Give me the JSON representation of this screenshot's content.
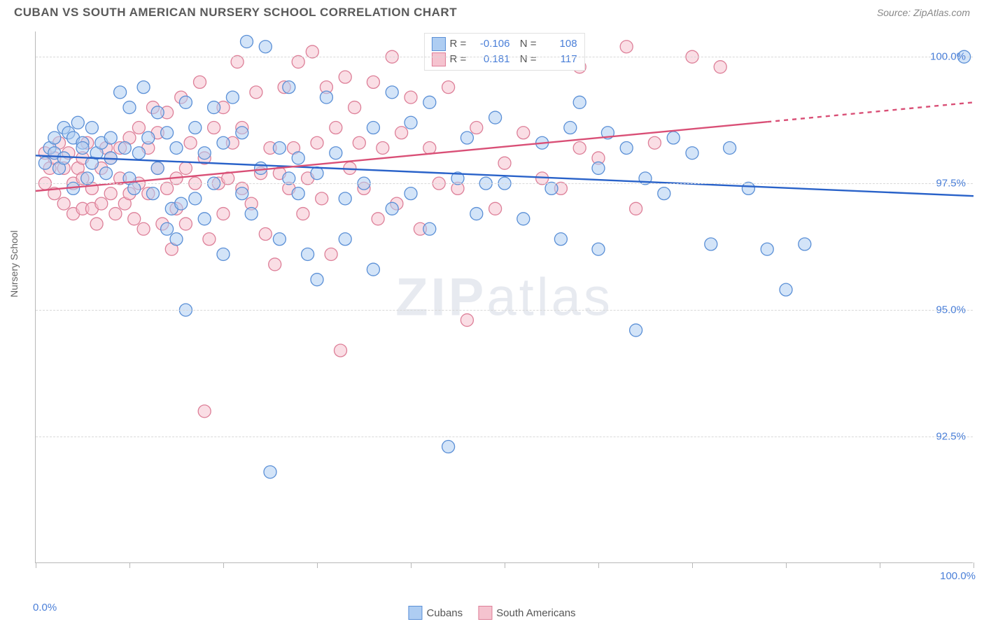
{
  "header": {
    "title": "CUBAN VS SOUTH AMERICAN NURSERY SCHOOL CORRELATION CHART",
    "source": "Source: ZipAtlas.com"
  },
  "chart": {
    "type": "scatter",
    "ylabel": "Nursery School",
    "watermark": "ZIPatlas",
    "background_color": "#ffffff",
    "grid_color": "#d8d8d8",
    "axis_color": "#b8b8b8",
    "tick_label_color": "#4a7fd8",
    "xlim": [
      0,
      100
    ],
    "ylim": [
      90.0,
      100.5
    ],
    "y_ticks": [
      92.5,
      95.0,
      97.5,
      100.0
    ],
    "y_tick_labels": [
      "92.5%",
      "95.0%",
      "97.5%",
      "100.0%"
    ],
    "x_ticks": [
      0,
      10,
      20,
      30,
      40,
      50,
      60,
      70,
      80,
      90,
      100
    ],
    "x_edge_labels": {
      "min": "0.0%",
      "max": "100.0%"
    },
    "marker_radius": 9,
    "marker_opacity": 0.55,
    "line_width": 2.4,
    "series": [
      {
        "key": "cubans",
        "label": "Cubans",
        "fill_color": "#aecdf2",
        "stroke_color": "#5a8fd6",
        "line_color": "#2962c9",
        "R": "-0.106",
        "N": "108",
        "trend": {
          "x1": 0,
          "y1": 98.05,
          "x2": 100,
          "y2": 97.25,
          "dash_after_x": null
        },
        "points": [
          [
            1,
            97.9
          ],
          [
            1.5,
            98.2
          ],
          [
            2,
            98.1
          ],
          [
            2,
            98.4
          ],
          [
            2.5,
            97.8
          ],
          [
            3,
            98.0
          ],
          [
            3,
            98.6
          ],
          [
            3.5,
            98.5
          ],
          [
            4,
            98.4
          ],
          [
            4,
            97.4
          ],
          [
            4.5,
            98.7
          ],
          [
            5,
            98.3
          ],
          [
            5,
            98.2
          ],
          [
            5.5,
            97.6
          ],
          [
            6,
            98.6
          ],
          [
            6,
            97.9
          ],
          [
            6.5,
            98.1
          ],
          [
            7,
            98.3
          ],
          [
            7.5,
            97.7
          ],
          [
            8,
            98.4
          ],
          [
            8,
            98.0
          ],
          [
            9,
            99.3
          ],
          [
            9.5,
            98.2
          ],
          [
            10,
            97.6
          ],
          [
            10,
            99.0
          ],
          [
            10.5,
            97.4
          ],
          [
            11,
            98.1
          ],
          [
            11.5,
            99.4
          ],
          [
            12,
            98.4
          ],
          [
            12.5,
            97.3
          ],
          [
            13,
            98.9
          ],
          [
            13,
            97.8
          ],
          [
            14,
            98.5
          ],
          [
            14,
            96.6
          ],
          [
            14.5,
            97.0
          ],
          [
            15,
            98.2
          ],
          [
            15,
            96.4
          ],
          [
            15.5,
            97.1
          ],
          [
            16,
            99.1
          ],
          [
            16,
            95.0
          ],
          [
            17,
            98.6
          ],
          [
            17,
            97.2
          ],
          [
            18,
            96.8
          ],
          [
            18,
            98.1
          ],
          [
            19,
            97.5
          ],
          [
            19,
            99.0
          ],
          [
            20,
            98.3
          ],
          [
            20,
            96.1
          ],
          [
            21,
            99.2
          ],
          [
            22,
            97.3
          ],
          [
            22,
            98.5
          ],
          [
            22.5,
            100.3
          ],
          [
            23,
            96.9
          ],
          [
            24,
            97.8
          ],
          [
            24.5,
            100.2
          ],
          [
            25,
            91.8
          ],
          [
            26,
            98.2
          ],
          [
            26,
            96.4
          ],
          [
            27,
            97.6
          ],
          [
            27,
            99.4
          ],
          [
            28,
            97.3
          ],
          [
            28,
            98.0
          ],
          [
            29,
            96.1
          ],
          [
            30,
            97.7
          ],
          [
            30,
            95.6
          ],
          [
            31,
            99.2
          ],
          [
            32,
            98.1
          ],
          [
            33,
            97.2
          ],
          [
            33,
            96.4
          ],
          [
            35,
            97.5
          ],
          [
            36,
            98.6
          ],
          [
            36,
            95.8
          ],
          [
            38,
            97.0
          ],
          [
            38,
            99.3
          ],
          [
            40,
            97.3
          ],
          [
            40,
            98.7
          ],
          [
            42,
            96.6
          ],
          [
            42,
            99.1
          ],
          [
            44,
            92.3
          ],
          [
            45,
            97.6
          ],
          [
            46,
            98.4
          ],
          [
            47,
            96.9
          ],
          [
            48,
            97.5
          ],
          [
            49,
            98.8
          ],
          [
            50,
            97.5
          ],
          [
            52,
            96.8
          ],
          [
            54,
            98.3
          ],
          [
            55,
            97.4
          ],
          [
            56,
            96.4
          ],
          [
            57,
            98.6
          ],
          [
            58,
            99.1
          ],
          [
            60,
            97.8
          ],
          [
            60,
            96.2
          ],
          [
            61,
            98.5
          ],
          [
            63,
            98.2
          ],
          [
            64,
            94.6
          ],
          [
            65,
            97.6
          ],
          [
            67,
            97.3
          ],
          [
            68,
            98.4
          ],
          [
            70,
            98.1
          ],
          [
            72,
            96.3
          ],
          [
            74,
            98.2
          ],
          [
            76,
            97.4
          ],
          [
            78,
            96.2
          ],
          [
            80,
            95.4
          ],
          [
            82,
            96.3
          ],
          [
            99,
            100.0
          ]
        ]
      },
      {
        "key": "south_americans",
        "label": "South Americans",
        "fill_color": "#f5c3cf",
        "stroke_color": "#dd7f98",
        "line_color": "#d94f76",
        "R": "0.181",
        "N": "117",
        "trend": {
          "x1": 0,
          "y1": 97.35,
          "x2": 100,
          "y2": 99.1,
          "dash_after_x": 78
        },
        "points": [
          [
            1,
            98.1
          ],
          [
            1,
            97.5
          ],
          [
            1.5,
            97.8
          ],
          [
            2,
            97.3
          ],
          [
            2,
            98.0
          ],
          [
            2.5,
            98.3
          ],
          [
            3,
            97.8
          ],
          [
            3,
            97.1
          ],
          [
            3.5,
            98.1
          ],
          [
            4,
            97.5
          ],
          [
            4,
            96.9
          ],
          [
            4.5,
            97.8
          ],
          [
            5,
            98.0
          ],
          [
            5,
            97.6
          ],
          [
            5,
            97.0
          ],
          [
            5.5,
            98.3
          ],
          [
            6,
            97.4
          ],
          [
            6,
            97.0
          ],
          [
            6.5,
            96.7
          ],
          [
            7,
            97.8
          ],
          [
            7,
            97.1
          ],
          [
            7.5,
            98.2
          ],
          [
            8,
            98.0
          ],
          [
            8,
            97.3
          ],
          [
            8.5,
            96.9
          ],
          [
            9,
            98.2
          ],
          [
            9,
            97.6
          ],
          [
            9.5,
            97.1
          ],
          [
            10,
            98.4
          ],
          [
            10,
            97.3
          ],
          [
            10.5,
            96.8
          ],
          [
            11,
            98.6
          ],
          [
            11,
            97.5
          ],
          [
            11.5,
            96.6
          ],
          [
            12,
            98.2
          ],
          [
            12,
            97.3
          ],
          [
            12.5,
            99.0
          ],
          [
            13,
            97.8
          ],
          [
            13,
            98.5
          ],
          [
            13.5,
            96.7
          ],
          [
            14,
            97.4
          ],
          [
            14,
            98.9
          ],
          [
            14.5,
            96.2
          ],
          [
            15,
            97.6
          ],
          [
            15,
            97.0
          ],
          [
            15.5,
            99.2
          ],
          [
            16,
            97.8
          ],
          [
            16,
            96.7
          ],
          [
            16.5,
            98.3
          ],
          [
            17,
            97.5
          ],
          [
            17.5,
            99.5
          ],
          [
            18,
            98.0
          ],
          [
            18,
            93.0
          ],
          [
            18.5,
            96.4
          ],
          [
            19,
            98.6
          ],
          [
            19.5,
            97.5
          ],
          [
            20,
            99.0
          ],
          [
            20,
            96.9
          ],
          [
            20.5,
            97.6
          ],
          [
            21,
            98.3
          ],
          [
            21.5,
            99.9
          ],
          [
            22,
            97.4
          ],
          [
            22,
            98.6
          ],
          [
            23,
            97.1
          ],
          [
            23.5,
            99.3
          ],
          [
            24,
            97.7
          ],
          [
            24.5,
            96.5
          ],
          [
            25,
            98.2
          ],
          [
            25.5,
            95.9
          ],
          [
            26,
            97.7
          ],
          [
            26.5,
            99.4
          ],
          [
            27,
            97.4
          ],
          [
            27.5,
            98.2
          ],
          [
            28,
            99.9
          ],
          [
            28.5,
            96.9
          ],
          [
            29,
            97.6
          ],
          [
            29.5,
            100.1
          ],
          [
            30,
            98.3
          ],
          [
            30.5,
            97.2
          ],
          [
            31,
            99.4
          ],
          [
            31.5,
            96.1
          ],
          [
            32,
            98.6
          ],
          [
            32.5,
            94.2
          ],
          [
            33,
            99.6
          ],
          [
            33.5,
            97.8
          ],
          [
            34,
            99.0
          ],
          [
            34.5,
            98.3
          ],
          [
            35,
            97.4
          ],
          [
            36,
            99.5
          ],
          [
            36.5,
            96.8
          ],
          [
            37,
            98.2
          ],
          [
            38,
            100.0
          ],
          [
            38.5,
            97.1
          ],
          [
            39,
            98.5
          ],
          [
            40,
            99.2
          ],
          [
            41,
            96.6
          ],
          [
            42,
            98.2
          ],
          [
            43,
            97.5
          ],
          [
            44,
            99.4
          ],
          [
            45,
            97.4
          ],
          [
            46,
            94.8
          ],
          [
            47,
            98.6
          ],
          [
            48,
            100.1
          ],
          [
            49,
            97.0
          ],
          [
            50,
            97.9
          ],
          [
            52,
            98.5
          ],
          [
            54,
            97.6
          ],
          [
            56,
            97.4
          ],
          [
            58,
            98.2
          ],
          [
            58,
            99.8
          ],
          [
            60,
            98.0
          ],
          [
            63,
            100.2
          ],
          [
            64,
            97.0
          ],
          [
            66,
            98.3
          ],
          [
            70,
            100.0
          ],
          [
            73,
            99.8
          ]
        ]
      }
    ],
    "legend_bottom": [
      {
        "key": "cubans",
        "label": "Cubans"
      },
      {
        "key": "south_americans",
        "label": "South Americans"
      }
    ]
  }
}
